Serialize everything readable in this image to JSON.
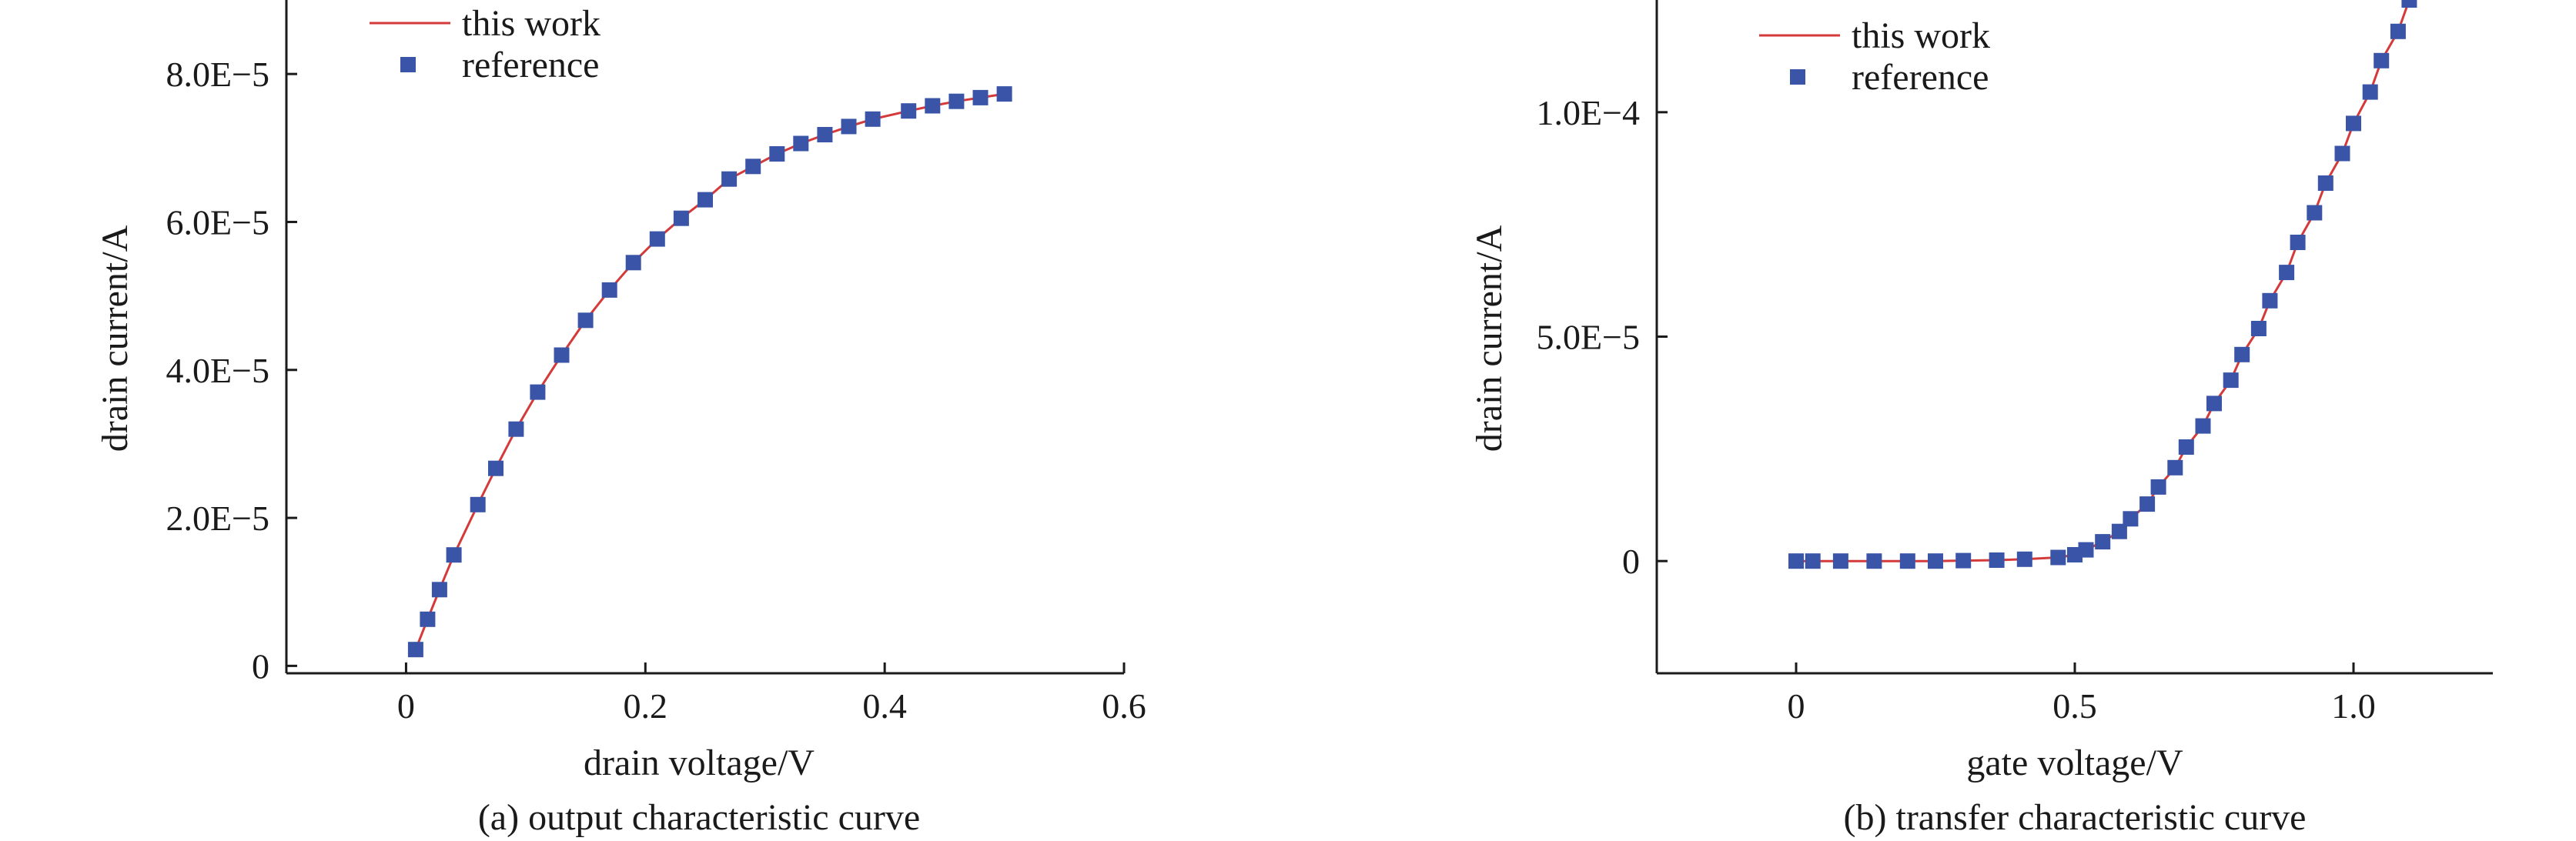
{
  "colors": {
    "line": "#d43a3a",
    "marker": "#3a55a8",
    "axis": "#1a1a1a"
  },
  "chart_data": [
    {
      "type": "line",
      "caption": "(a) output characteristic curve",
      "xlabel": "drain voltage/V",
      "ylabel": "drain current/A",
      "xlim": [
        -0.1,
        0.6
      ],
      "ylim": [
        -1e-06,
        9e-05
      ],
      "xticks": [
        0,
        0.2,
        0.4,
        0.6
      ],
      "xtick_labels": [
        "0",
        "0.2",
        "0.4",
        "0.6"
      ],
      "yticks": [
        0,
        2e-05,
        4e-05,
        6e-05,
        8e-05
      ],
      "ytick_labels": [
        "0",
        "2.0E−5",
        "4.0E−5",
        "6.0E−5",
        "8.0E−5"
      ],
      "legend": [
        "this work",
        "reference"
      ],
      "legend_position": "top-left",
      "series": [
        {
          "name": "this work",
          "kind": "line",
          "x": [
            0.008,
            0.018,
            0.028,
            0.04,
            0.06,
            0.075,
            0.092,
            0.11,
            0.13,
            0.15,
            0.17,
            0.19,
            0.21,
            0.23,
            0.25,
            0.27,
            0.29,
            0.31,
            0.33,
            0.35,
            0.37,
            0.39,
            0.42,
            0.44,
            0.46,
            0.48,
            0.5
          ],
          "y": [
            2.2e-06,
            6.3e-06,
            1.03e-05,
            1.5e-05,
            2.18e-05,
            2.67e-05,
            3.2e-05,
            3.7e-05,
            4.2e-05,
            4.67e-05,
            5.08e-05,
            5.45e-05,
            5.77e-05,
            6.05e-05,
            6.3e-05,
            6.58e-05,
            6.75e-05,
            6.92e-05,
            7.06e-05,
            7.18e-05,
            7.29e-05,
            7.39e-05,
            7.5e-05,
            7.57e-05,
            7.63e-05,
            7.68e-05,
            7.73e-05
          ]
        },
        {
          "name": "reference",
          "kind": "scatter",
          "x": [
            0.008,
            0.018,
            0.028,
            0.04,
            0.06,
            0.075,
            0.092,
            0.11,
            0.13,
            0.15,
            0.17,
            0.19,
            0.21,
            0.23,
            0.25,
            0.27,
            0.29,
            0.31,
            0.33,
            0.35,
            0.37,
            0.39,
            0.42,
            0.44,
            0.46,
            0.48,
            0.5
          ],
          "y": [
            2.2e-06,
            6.3e-06,
            1.03e-05,
            1.5e-05,
            2.18e-05,
            2.67e-05,
            3.2e-05,
            3.7e-05,
            4.2e-05,
            4.67e-05,
            5.08e-05,
            5.45e-05,
            5.77e-05,
            6.05e-05,
            6.3e-05,
            6.58e-05,
            6.75e-05,
            6.92e-05,
            7.06e-05,
            7.18e-05,
            7.29e-05,
            7.39e-05,
            7.5e-05,
            7.57e-05,
            7.63e-05,
            7.68e-05,
            7.73e-05
          ]
        }
      ]
    },
    {
      "type": "line",
      "caption": "(b) transfer characteristic curve",
      "xlabel": "gate voltage/V",
      "ylabel": "drain current/A",
      "xlim": [
        -0.25,
        1.25
      ],
      "ylim": [
        -2.5e-05,
        0.000125
      ],
      "xticks": [
        0,
        0.5,
        1.0
      ],
      "xtick_labels": [
        "0",
        "0.5",
        "1.0"
      ],
      "yticks": [
        0,
        5e-05,
        0.0001
      ],
      "ytick_labels": [
        "0",
        "5.0E−5",
        "1.0E−4"
      ],
      "legend": [
        "this work",
        "reference"
      ],
      "legend_position": "top-left",
      "series": [
        {
          "name": "this work",
          "kind": "line",
          "x": [
            0,
            0.03,
            0.08,
            0.14,
            0.2,
            0.25,
            0.3,
            0.36,
            0.41,
            0.47,
            0.5,
            0.52,
            0.55,
            0.58,
            0.6,
            0.63,
            0.65,
            0.68,
            0.7,
            0.73,
            0.75,
            0.78,
            0.8,
            0.83,
            0.85,
            0.88,
            0.9,
            0.93,
            0.95,
            0.98,
            1.0,
            1.03,
            1.05,
            1.08,
            1.1
          ],
          "y": [
            0,
            0,
            0,
            0,
            0,
            0,
            1e-07,
            2e-07,
            4e-07,
            8e-07,
            1.4e-06,
            2.5e-06,
            4.3e-06,
            6.6e-06,
            9.4e-06,
            1.27e-05,
            1.65e-05,
            2.08e-05,
            2.54e-05,
            3.01e-05,
            3.51e-05,
            4.03e-05,
            4.6e-05,
            5.18e-05,
            5.8e-05,
            6.43e-05,
            7.1e-05,
            7.76e-05,
            8.42e-05,
            9.08e-05,
            9.75e-05,
            0.0001045,
            0.0001115,
            0.000118,
            0.000125
          ]
        },
        {
          "name": "reference",
          "kind": "scatter",
          "x": [
            0,
            0.03,
            0.08,
            0.14,
            0.2,
            0.25,
            0.3,
            0.36,
            0.41,
            0.47,
            0.5,
            0.52,
            0.55,
            0.58,
            0.6,
            0.63,
            0.65,
            0.68,
            0.7,
            0.73,
            0.75,
            0.78,
            0.8,
            0.83,
            0.85,
            0.88,
            0.9,
            0.93,
            0.95,
            0.98,
            1.0,
            1.03,
            1.05,
            1.08,
            1.1
          ],
          "y": [
            0,
            0,
            0,
            0,
            0,
            0,
            1e-07,
            2e-07,
            4e-07,
            8e-07,
            1.4e-06,
            2.5e-06,
            4.3e-06,
            6.6e-06,
            9.4e-06,
            1.27e-05,
            1.65e-05,
            2.08e-05,
            2.54e-05,
            3.01e-05,
            3.51e-05,
            4.03e-05,
            4.6e-05,
            5.18e-05,
            5.8e-05,
            6.43e-05,
            7.1e-05,
            7.76e-05,
            8.42e-05,
            9.08e-05,
            9.75e-05,
            0.0001045,
            0.0001115,
            0.000118,
            0.000125
          ]
        }
      ]
    }
  ]
}
